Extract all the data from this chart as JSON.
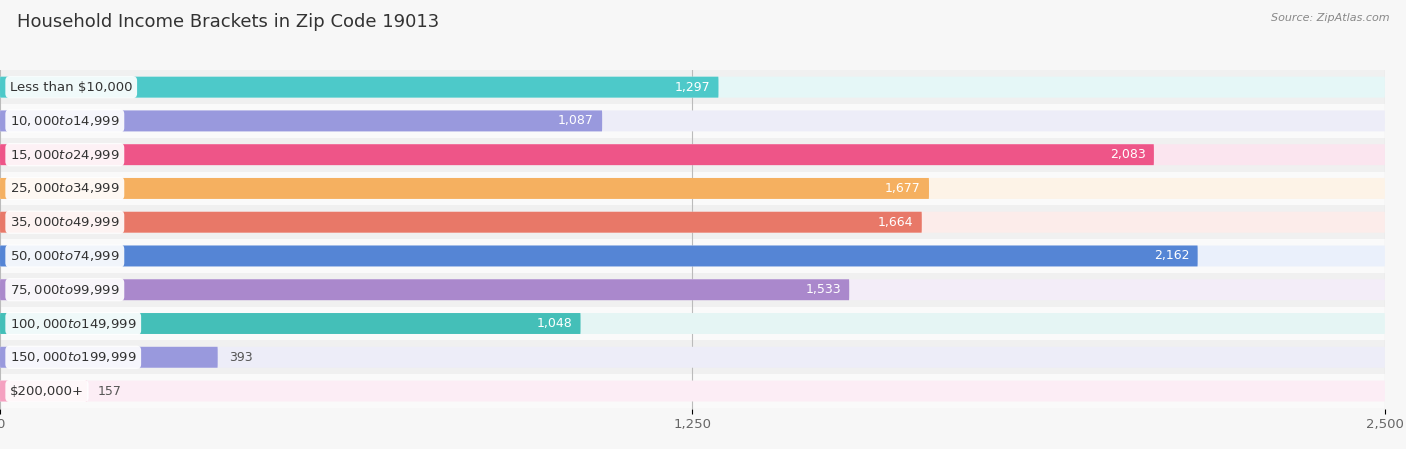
{
  "title": "Household Income Brackets in Zip Code 19013",
  "source": "Source: ZipAtlas.com",
  "categories": [
    "Less than $10,000",
    "$10,000 to $14,999",
    "$15,000 to $24,999",
    "$25,000 to $34,999",
    "$35,000 to $49,999",
    "$50,000 to $74,999",
    "$75,000 to $99,999",
    "$100,000 to $149,999",
    "$150,000 to $199,999",
    "$200,000+"
  ],
  "values": [
    1297,
    1087,
    2083,
    1677,
    1664,
    2162,
    1533,
    1048,
    393,
    157
  ],
  "bar_colors": [
    "#4dc9c9",
    "#9999dd",
    "#ee5588",
    "#f5b060",
    "#e87868",
    "#5585d5",
    "#aa88cc",
    "#44bfb8",
    "#9999dd",
    "#f5a0c0"
  ],
  "bar_bg_colors": [
    "#e5f7f7",
    "#ededf8",
    "#fbe5ef",
    "#fdf3e7",
    "#fcecea",
    "#eaf0fb",
    "#f3edf8",
    "#e5f5f4",
    "#ededf8",
    "#fcedf5"
  ],
  "row_bg_colors": [
    "#f0f0f0",
    "#fafafa",
    "#f0f0f0",
    "#fafafa",
    "#f0f0f0",
    "#fafafa",
    "#f0f0f0",
    "#fafafa",
    "#f0f0f0",
    "#fafafa"
  ],
  "xlim": [
    0,
    2500
  ],
  "xticks": [
    0,
    1250,
    2500
  ],
  "background_color": "#f7f7f7",
  "title_fontsize": 13,
  "label_fontsize": 9.5,
  "value_fontsize": 9,
  "bar_height": 0.62,
  "value_inside_threshold": 400
}
